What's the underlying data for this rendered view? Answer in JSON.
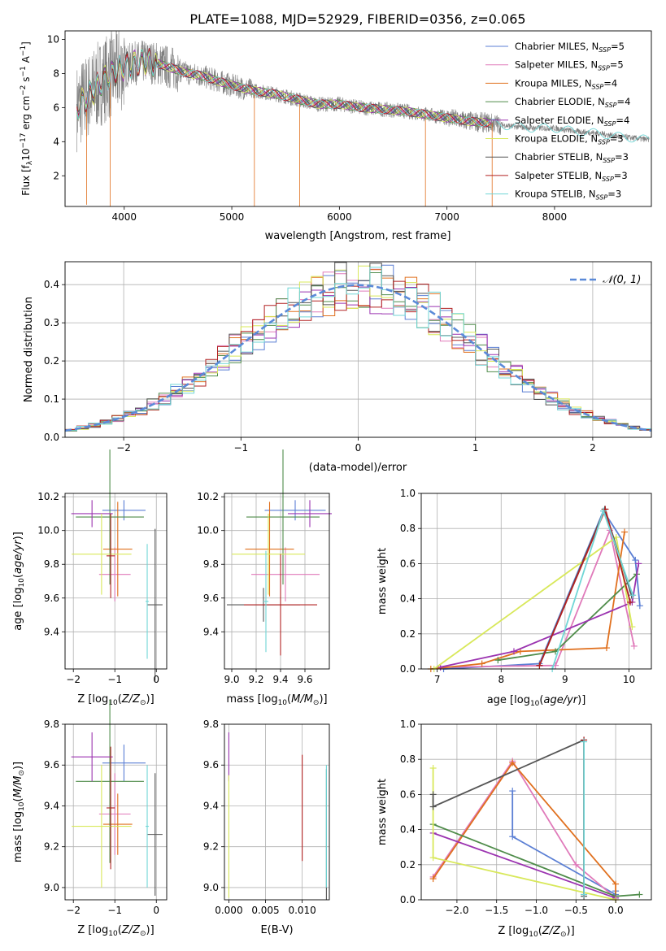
{
  "chart_data": [
    {
      "id": "spectrum",
      "type": "line",
      "title": "PLATE=1088, MJD=52929, FIBERID=0356, z=0.065",
      "xlabel": "wavelength [Angstrom, rest frame]",
      "ylabel": "Flux [fλ10⁻¹⁷ erg cm⁻² s⁻¹ A⁻¹]",
      "xlim": [
        3450,
        8900
      ],
      "ylim": [
        0.2,
        10.5
      ],
      "xticks": [
        4000,
        5000,
        6000,
        7000,
        8000
      ],
      "yticks": [
        2,
        4,
        6,
        8,
        10
      ],
      "data_color": "#808080",
      "legend_position": "upper right",
      "series": [
        {
          "name": "Chabrier MILES, N",
          "sub": "SSP",
          "suffix": "=5",
          "color": "#5b7fd4"
        },
        {
          "name": "Salpeter MILES, N",
          "sub": "SSP",
          "suffix": "=5",
          "color": "#e07aba"
        },
        {
          "name": "Kroupa MILES, N",
          "sub": "SSP",
          "suffix": "=4",
          "color": "#e0701e"
        },
        {
          "name": "Chabrier ELODIE, N",
          "sub": "SSP",
          "suffix": "=4",
          "color": "#4f8c4a"
        },
        {
          "name": "Salpeter ELODIE, N",
          "sub": "SSP",
          "suffix": "=4",
          "color": "#9b33b0"
        },
        {
          "name": "Kroupa ELODIE, N",
          "sub": "SSP",
          "suffix": "=3",
          "color": "#d8e85a"
        },
        {
          "name": "Chabrier STELIB, N",
          "sub": "SSP",
          "suffix": "=3",
          "color": "#555555"
        },
        {
          "name": "Salpeter STELIB, N",
          "sub": "SSP",
          "suffix": "=3",
          "color": "#b22222"
        },
        {
          "name": "Kroupa STELIB, N",
          "sub": "SSP",
          "suffix": "=3",
          "color": "#70d6d6"
        }
      ],
      "continuum": [
        [
          3550,
          5.9
        ],
        [
          3600,
          6.3
        ],
        [
          3700,
          6.9
        ],
        [
          3800,
          7.6
        ],
        [
          3900,
          8.0
        ],
        [
          4000,
          8.4
        ],
        [
          4100,
          8.6
        ],
        [
          4200,
          8.7
        ],
        [
          4300,
          8.6
        ],
        [
          4400,
          8.4
        ],
        [
          4500,
          8.2
        ],
        [
          4600,
          8.0
        ],
        [
          4700,
          7.9
        ],
        [
          4800,
          7.7
        ],
        [
          4900,
          7.5
        ],
        [
          5000,
          7.3
        ],
        [
          5200,
          7.0
        ],
        [
          5400,
          6.8
        ],
        [
          5600,
          6.5
        ],
        [
          5800,
          6.2
        ],
        [
          6000,
          6.2
        ],
        [
          6200,
          6.0
        ],
        [
          6400,
          5.9
        ],
        [
          6600,
          5.8
        ],
        [
          6800,
          5.6
        ],
        [
          7000,
          5.4
        ],
        [
          7200,
          5.2
        ],
        [
          7400,
          5.1
        ],
        [
          7600,
          4.9
        ],
        [
          7800,
          4.8
        ],
        [
          8000,
          4.8
        ],
        [
          8200,
          4.6
        ],
        [
          8400,
          4.5
        ],
        [
          8600,
          4.3
        ],
        [
          8900,
          4.1
        ]
      ]
    },
    {
      "id": "residuals",
      "type": "line",
      "xlabel": "(data-model)/error",
      "ylabel": "Normed distribution",
      "xlim": [
        -2.5,
        2.5
      ],
      "ylim": [
        0.0,
        0.46
      ],
      "xticks": [
        -2,
        -1,
        0,
        1,
        2
      ],
      "yticks": [
        0.0,
        0.1,
        0.2,
        0.3,
        0.4
      ],
      "xtick_labels": [
        "−2",
        "−1",
        "0",
        "1",
        "2"
      ],
      "ytick_labels": [
        "0.0",
        "0.1",
        "0.2",
        "0.3",
        "0.4"
      ],
      "reference": {
        "label": "𝒩(0, 1)",
        "mean": 0,
        "sigma": 1,
        "color": "#5b8ad8"
      },
      "bin_width": 0.1,
      "series_colors": [
        "#5b7fd4",
        "#e07aba",
        "#e0701e",
        "#4f8c4a",
        "#9b33b0",
        "#d8e85a",
        "#555555",
        "#b22222",
        "#70d6d6"
      ]
    },
    {
      "id": "age-vs-z",
      "type": "scatter",
      "xlabel": "Z [log₁₀(Z/Z⊙)]",
      "ylabel": "age  [log₁₀(age/yr)]",
      "xlim": [
        -2.2,
        0.25
      ],
      "ylim": [
        9.18,
        10.22
      ],
      "xticks": [
        -2,
        -1,
        0
      ],
      "xtick_labels": [
        "−2",
        "−1",
        "0"
      ],
      "yticks": [
        9.4,
        9.6,
        9.8,
        10.0,
        10.2
      ],
      "ytick_labels": [
        "9.4",
        "9.6",
        "9.8",
        "10.0",
        "10.2"
      ],
      "points": [
        {
          "color": "#5b7fd4",
          "x": -0.78,
          "xerr": 0.52,
          "y": 10.12,
          "yerr": 0.06
        },
        {
          "color": "#e07aba",
          "x": -1.0,
          "xerr": 0.38,
          "y": 9.74,
          "yerr": 0.16
        },
        {
          "color": "#e0701e",
          "x": -0.93,
          "xerr": 0.35,
          "y": 9.89,
          "yerr": 0.28
        },
        {
          "color": "#4f8c4a",
          "x": -1.12,
          "xerr": 0.82,
          "y": 10.08,
          "yerr": 0.4
        },
        {
          "color": "#9b33b0",
          "x": -1.55,
          "xerr": 0.5,
          "y": 10.1,
          "yerr": 0.08
        },
        {
          "color": "#d8e85a",
          "x": -1.32,
          "xerr": 0.72,
          "y": 9.86,
          "yerr": 0.24
        },
        {
          "color": "#555555",
          "x": -0.03,
          "xerr": 0.18,
          "y": 9.56,
          "yerr": 0.45
        },
        {
          "color": "#b22222",
          "x": -1.1,
          "xerr": 0.1,
          "y": 9.85,
          "yerr": 0.25
        },
        {
          "color": "#70d6d6",
          "x": -0.22,
          "xerr": 0.04,
          "y": 9.58,
          "yerr": 0.34
        }
      ]
    },
    {
      "id": "age-vs-mass",
      "type": "scatter",
      "xlabel": "mass [log₁₀(M/M⊙)]",
      "ylabel": "",
      "xlim": [
        8.94,
        9.8
      ],
      "ylim": [
        9.18,
        10.22
      ],
      "xticks": [
        9.0,
        9.2,
        9.4,
        9.6
      ],
      "xtick_labels": [
        "9.0",
        "9.2",
        "9.4",
        "9.6"
      ],
      "yticks": [
        9.4,
        9.6,
        9.8,
        10.0,
        10.2
      ],
      "ytick_labels": [
        "9.4",
        "9.6",
        "9.8",
        "10.0",
        "10.2"
      ],
      "points": [
        {
          "color": "#5b7fd4",
          "x": 9.52,
          "xerr": 0.25,
          "y": 10.12,
          "yerr": 0.06
        },
        {
          "color": "#e07aba",
          "x": 9.44,
          "xerr": 0.28,
          "y": 9.74,
          "yerr": 0.16
        },
        {
          "color": "#e0701e",
          "x": 9.31,
          "xerr": 0.2,
          "y": 9.89,
          "yerr": 0.28
        },
        {
          "color": "#4f8c4a",
          "x": 9.42,
          "xerr": 0.3,
          "y": 10.08,
          "yerr": 0.4
        },
        {
          "color": "#9b33b0",
          "x": 9.64,
          "xerr": 0.18,
          "y": 10.1,
          "yerr": 0.08
        },
        {
          "color": "#d8e85a",
          "x": 9.3,
          "xerr": 0.3,
          "y": 9.86,
          "yerr": 0.24
        },
        {
          "color": "#555555",
          "x": 9.26,
          "xerr": 0.3,
          "y": 9.56,
          "yerr": 0.1
        },
        {
          "color": "#b22222",
          "x": 9.4,
          "xerr": 0.3,
          "y": 9.56,
          "yerr": 0.3
        },
        {
          "color": "#70d6d6",
          "x": 9.28,
          "xerr": 0.02,
          "y": 9.58,
          "yerr": 0.3
        }
      ]
    },
    {
      "id": "weight-vs-age",
      "type": "line",
      "xlabel": "age  [log₁₀(age/yr)]",
      "ylabel": "mass weight",
      "xlim": [
        6.75,
        10.35
      ],
      "ylim": [
        0.0,
        1.0
      ],
      "xticks": [
        7,
        8,
        9,
        10
      ],
      "xtick_labels": [
        "7",
        "8",
        "9",
        "10"
      ],
      "yticks": [
        0.0,
        0.2,
        0.4,
        0.6,
        0.8,
        1.0
      ],
      "ytick_labels": [
        "0.0",
        "0.2",
        "0.4",
        "0.6",
        "0.8",
        "1.0"
      ],
      "series": [
        {
          "color": "#5b7fd4",
          "points": [
            [
              7.1,
              0.0
            ],
            [
              8.6,
              0.03
            ],
            [
              9.6,
              0.9
            ],
            [
              10.1,
              0.62
            ],
            [
              10.17,
              0.36
            ]
          ]
        },
        {
          "color": "#e07aba",
          "points": [
            [
              7.05,
              0.01
            ],
            [
              8.85,
              0.02
            ],
            [
              9.7,
              0.79
            ],
            [
              10.08,
              0.13
            ]
          ]
        },
        {
          "color": "#e0701e",
          "points": [
            [
              6.9,
              0.0
            ],
            [
              7.7,
              0.03
            ],
            [
              8.3,
              0.1
            ],
            [
              9.65,
              0.12
            ],
            [
              9.93,
              0.78
            ]
          ]
        },
        {
          "color": "#4f8c4a",
          "points": [
            [
              7.95,
              0.05
            ],
            [
              8.85,
              0.1
            ],
            [
              10.12,
              0.54
            ]
          ]
        },
        {
          "color": "#9b33b0",
          "points": [
            [
              7.05,
              0.01
            ],
            [
              8.2,
              0.1
            ],
            [
              10.05,
              0.38
            ],
            [
              10.15,
              0.6
            ]
          ]
        },
        {
          "color": "#d8e85a",
          "points": [
            [
              6.95,
              0.0
            ],
            [
              9.8,
              0.75
            ],
            [
              10.05,
              0.24
            ]
          ]
        },
        {
          "color": "#555555",
          "points": [
            [
              8.6,
              0.02
            ],
            [
              9.62,
              0.91
            ],
            [
              10.04,
              0.42
            ]
          ]
        },
        {
          "color": "#b22222",
          "points": [
            [
              8.6,
              0.02
            ],
            [
              9.63,
              0.91
            ],
            [
              10.02,
              0.38
            ]
          ]
        },
        {
          "color": "#70d6d6",
          "points": [
            [
              8.8,
              0.0
            ],
            [
              9.6,
              0.9
            ],
            [
              10.06,
              0.42
            ]
          ]
        }
      ]
    },
    {
      "id": "mass-vs-z",
      "type": "scatter",
      "xlabel": "Z [log₁₀(Z/Z⊙)]",
      "ylabel": "mass [log₁₀(M/M⊙)]",
      "xlim": [
        -2.2,
        0.25
      ],
      "ylim": [
        8.94,
        9.8
      ],
      "xticks": [
        -2,
        -1,
        0
      ],
      "xtick_labels": [
        "−2",
        "−1",
        "0"
      ],
      "yticks": [
        9.0,
        9.2,
        9.4,
        9.6,
        9.8
      ],
      "ytick_labels": [
        "9.0",
        "9.2",
        "9.4",
        "9.6",
        "9.8"
      ],
      "points": [
        {
          "color": "#5b7fd4",
          "x": -0.78,
          "xerr": 0.52,
          "y": 9.61,
          "yerr": 0.09
        },
        {
          "color": "#e07aba",
          "x": -1.0,
          "xerr": 0.38,
          "y": 9.36,
          "yerr": 0.2
        },
        {
          "color": "#e0701e",
          "x": -0.93,
          "xerr": 0.35,
          "y": 9.31,
          "yerr": 0.15
        },
        {
          "color": "#4f8c4a",
          "x": -1.12,
          "xerr": 0.82,
          "y": 9.52,
          "yerr": 0.4
        },
        {
          "color": "#9b33b0",
          "x": -1.55,
          "xerr": 0.5,
          "y": 9.64,
          "yerr": 0.12
        },
        {
          "color": "#d8e85a",
          "x": -1.32,
          "xerr": 0.72,
          "y": 9.3,
          "yerr": 0.3
        },
        {
          "color": "#555555",
          "x": -0.03,
          "xerr": 0.18,
          "y": 9.26,
          "yerr": 0.3
        },
        {
          "color": "#b22222",
          "x": -1.1,
          "xerr": 0.1,
          "y": 9.39,
          "yerr": 0.3
        },
        {
          "color": "#70d6d6",
          "x": -0.22,
          "xerr": 0.04,
          "y": 9.3,
          "yerr": 0.3
        }
      ]
    },
    {
      "id": "mass-vs-ebv",
      "type": "scatter",
      "xlabel": "E(B-V)",
      "ylabel": "",
      "xlim": [
        -0.0006,
        0.0137
      ],
      "ylim": [
        8.94,
        9.8
      ],
      "xticks": [
        0.0,
        0.005,
        0.01
      ],
      "xtick_labels": [
        "0.000",
        "0.005",
        "0.010"
      ],
      "yticks": [
        9.0,
        9.2,
        9.4,
        9.6,
        9.8
      ],
      "ytick_labels": [
        "9.0",
        "9.2",
        "9.4",
        "9.6",
        "9.8"
      ],
      "points": [
        {
          "color": "#9b33b0",
          "x": 0.0,
          "xerr": 0,
          "y": 9.64,
          "yerr": 0.12
        },
        {
          "color": "#d8e85a",
          "x": 0.0,
          "xerr": 0,
          "y": 9.25,
          "yerr": 0.3
        },
        {
          "color": "#b22222",
          "x": 0.01,
          "xerr": 0,
          "y": 9.39,
          "yerr": 0.26
        },
        {
          "color": "#555555",
          "x": 0.0133,
          "xerr": 0,
          "y": 9.26,
          "yerr": 0.32
        },
        {
          "color": "#70d6d6",
          "x": 0.0133,
          "xerr": 0,
          "y": 9.3,
          "yerr": 0.3
        }
      ]
    },
    {
      "id": "weight-vs-z",
      "type": "line",
      "xlabel": "Z [log₁₀(Z/Z⊙)]",
      "ylabel": "mass weight",
      "xlim": [
        -2.45,
        0.45
      ],
      "ylim": [
        0.0,
        1.0
      ],
      "xticks": [
        -2.0,
        -1.5,
        -1.0,
        -0.5,
        0.0
      ],
      "xtick_labels": [
        "−2.0",
        "−1.5",
        "−1.0",
        "−0.5",
        "0.0"
      ],
      "yticks": [
        0.0,
        0.2,
        0.4,
        0.6,
        0.8,
        1.0
      ],
      "ytick_labels": [
        "0.0",
        "0.2",
        "0.4",
        "0.6",
        "0.8",
        "1.0"
      ],
      "series": [
        {
          "color": "#5b7fd4",
          "points": [
            [
              -1.3,
              0.62
            ],
            [
              -1.3,
              0.36
            ],
            [
              0.0,
              0.03
            ],
            [
              0.0,
              0.05
            ]
          ]
        },
        {
          "color": "#e07aba",
          "points": [
            [
              -2.3,
              0.13
            ],
            [
              -1.3,
              0.79
            ],
            [
              -0.5,
              0.2
            ],
            [
              0.0,
              0.01
            ]
          ]
        },
        {
          "color": "#e0701e",
          "points": [
            [
              -2.3,
              0.12
            ],
            [
              -1.3,
              0.78
            ],
            [
              0.0,
              0.09
            ],
            [
              0.0,
              0.0
            ]
          ]
        },
        {
          "color": "#4f8c4a",
          "points": [
            [
              -2.3,
              0.43
            ],
            [
              0.0,
              0.02
            ],
            [
              0.3,
              0.03
            ]
          ]
        },
        {
          "color": "#9b33b0",
          "points": [
            [
              -2.3,
              0.38
            ],
            [
              0.0,
              0.01
            ]
          ]
        },
        {
          "color": "#d8e85a",
          "points": [
            [
              -2.3,
              0.75
            ],
            [
              -2.3,
              0.24
            ],
            [
              0.0,
              0.0
            ]
          ]
        },
        {
          "color": "#555555",
          "points": [
            [
              -2.3,
              0.6
            ],
            [
              -2.3,
              0.53
            ],
            [
              -0.4,
              0.91
            ],
            [
              -0.4,
              0.02
            ]
          ]
        },
        {
          "color": "#b22222",
          "points": [
            [
              -0.4,
              0.91
            ],
            [
              -0.4,
              0.03
            ]
          ]
        },
        {
          "color": "#70d6d6",
          "points": [
            [
              -0.4,
              0.9
            ],
            [
              -0.4,
              0.03
            ]
          ]
        }
      ]
    }
  ]
}
